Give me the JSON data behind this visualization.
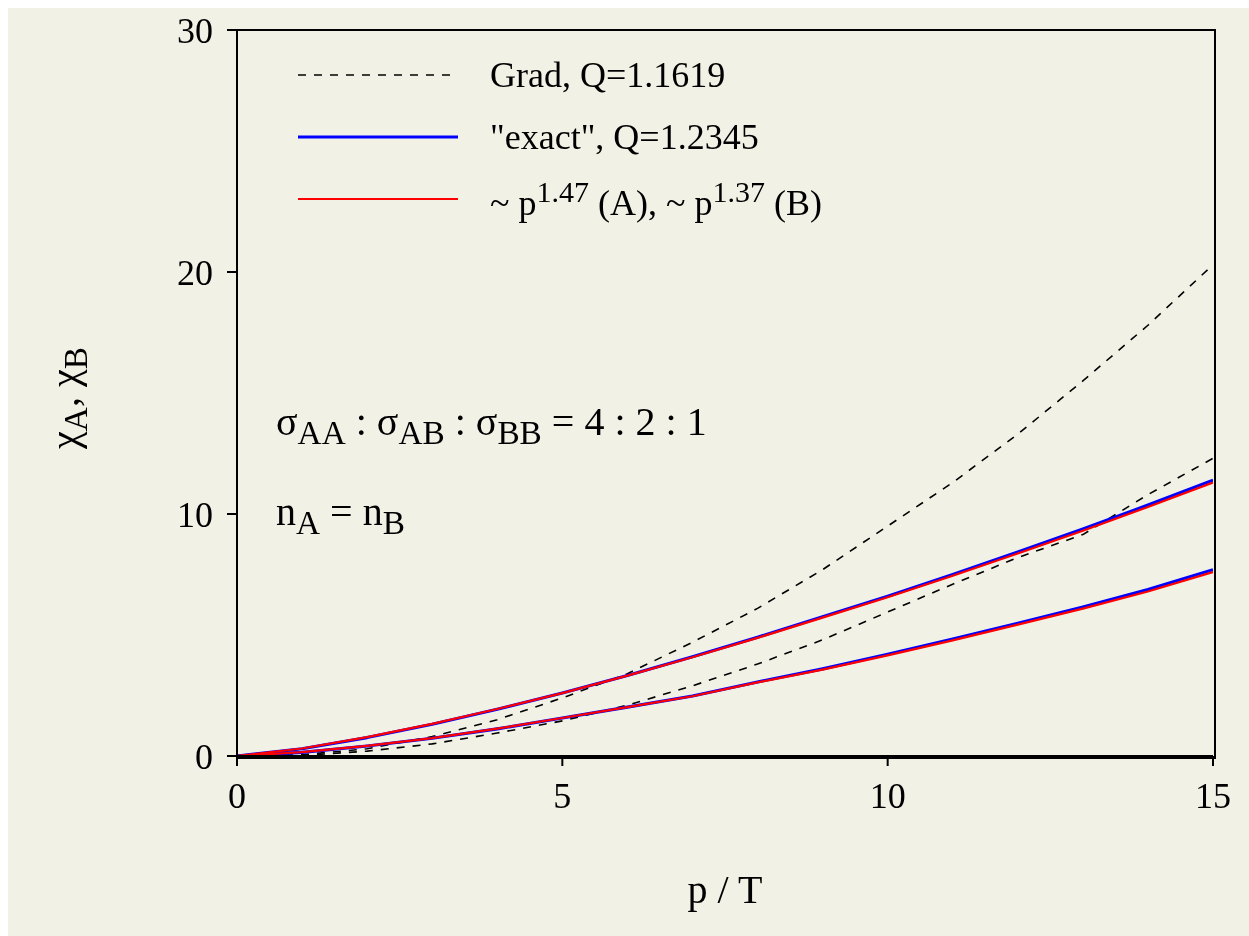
{
  "chart_data": {
    "type": "line",
    "xlabel": "p / T",
    "ylabel": "χ$_{A}$, χ$_{B}$",
    "x": [
      0,
      1,
      2,
      3,
      4,
      5,
      6,
      7,
      8,
      9,
      10,
      11,
      12,
      13,
      14,
      15
    ],
    "series": [
      {
        "name": "Grad, Q=1.1619",
        "color": "#000000",
        "line_style": "dashed",
        "values": [
          0,
          0.05,
          0.3,
          0.8,
          1.5,
          2.4,
          3.4,
          4.7,
          6.1,
          7.7,
          9.5,
          11.3,
          13.3,
          15.5,
          17.8,
          20.3
        ]
      },
      {
        "color": "#000000",
        "line_style": "dashed",
        "values": [
          0,
          0.02,
          0.2,
          0.5,
          0.95,
          1.45,
          2.1,
          2.9,
          3.8,
          4.8,
          5.95,
          7.1,
          8.2,
          9.15,
          10.8,
          12.3
        ]
      },
      {
        "name": "\"exact\", Q=1.2345",
        "color": "#0000ff",
        "line_style": "solid",
        "values": [
          0,
          0.3,
          0.76,
          1.31,
          1.93,
          2.6,
          3.33,
          4.1,
          4.91,
          5.76,
          6.6,
          7.5,
          8.43,
          9.38,
          10.37,
          11.4
        ]
      },
      {
        "color": "#0000ff",
        "line_style": "solid",
        "values": [
          0,
          0.15,
          0.41,
          0.73,
          1.12,
          1.57,
          2.02,
          2.48,
          3.06,
          3.6,
          4.2,
          4.83,
          5.49,
          6.16,
          6.88,
          7.7
        ]
      },
      {
        "name": "~ p$^{1.47}$ (A), ~ p$^{1.37}$ (B)",
        "color": "#ff0000",
        "line_style": "solid",
        "values": [
          0,
          0.31,
          0.78,
          1.33,
          1.94,
          2.6,
          3.32,
          4.08,
          4.88,
          5.72,
          6.56,
          7.45,
          8.37,
          9.31,
          10.29,
          11.3
        ]
      },
      {
        "color": "#ff0000",
        "line_style": "solid",
        "values": [
          0,
          0.16,
          0.42,
          0.74,
          1.13,
          1.57,
          2.02,
          2.47,
          3.04,
          3.57,
          4.16,
          4.78,
          5.43,
          6.09,
          6.8,
          7.6
        ]
      }
    ],
    "xlim": [
      0,
      15
    ],
    "xticks": [
      0,
      5,
      10,
      15
    ],
    "ylim": [
      0,
      30
    ],
    "yticks": [
      0,
      10,
      20,
      30
    ],
    "grid": false,
    "legend": "top left",
    "marker": "none",
    "annotations": [
      "σ$_{AA}$ : σ$_{AB}$ : σ$_{BB}$ = 4 : 2 : 1",
      "n$_{A}$ = n$_{B}$"
    ]
  }
}
